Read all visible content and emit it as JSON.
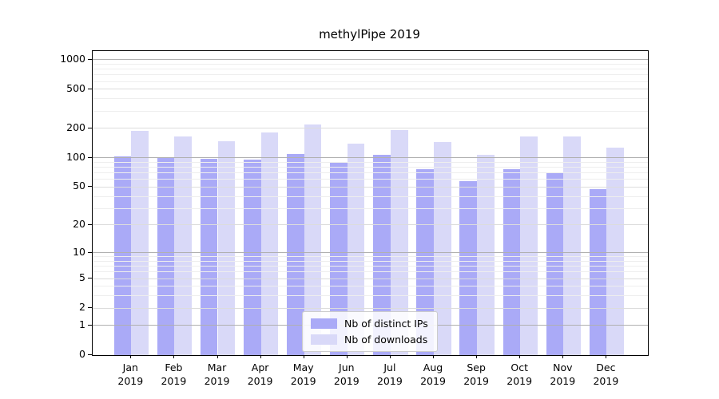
{
  "chart_data": {
    "type": "bar",
    "title": "methylPipe 2019",
    "categories": [
      "Jan 2019",
      "Feb 2019",
      "Mar 2019",
      "Apr 2019",
      "May 2019",
      "Jun 2019",
      "Jul 2019",
      "Aug 2019",
      "Sep 2019",
      "Oct 2019",
      "Nov 2019",
      "Dec 2019"
    ],
    "series": [
      {
        "name": "Nb of distinct IPs",
        "color": "#aaaaf7",
        "values": [
          104,
          99,
          98,
          96,
          109,
          89,
          108,
          76,
          58,
          76,
          70,
          48
        ]
      },
      {
        "name": "Nb of downloads",
        "color": "#d9d9f8",
        "values": [
          190,
          167,
          148,
          182,
          220,
          141,
          192,
          144,
          107,
          164,
          166,
          127
        ]
      }
    ],
    "yscale": "log10(1+x)",
    "y_tick_values": [
      0,
      1,
      2,
      5,
      10,
      20,
      50,
      100,
      200,
      500,
      1000
    ],
    "y_minor_gridline_values": [
      3,
      4,
      6,
      7,
      8,
      9,
      30,
      40,
      60,
      70,
      80,
      90,
      300,
      400,
      600,
      700,
      800,
      900
    ],
    "ylim": [
      0,
      1200
    ],
    "grid": true,
    "legend_position": "bottom-center",
    "colors": {
      "major_grid": "#b0b0b0",
      "sub_grid": "#dcdcdc",
      "minor_grid": "#eeeeee",
      "axis": "#000000",
      "background": "#ffffff"
    }
  }
}
